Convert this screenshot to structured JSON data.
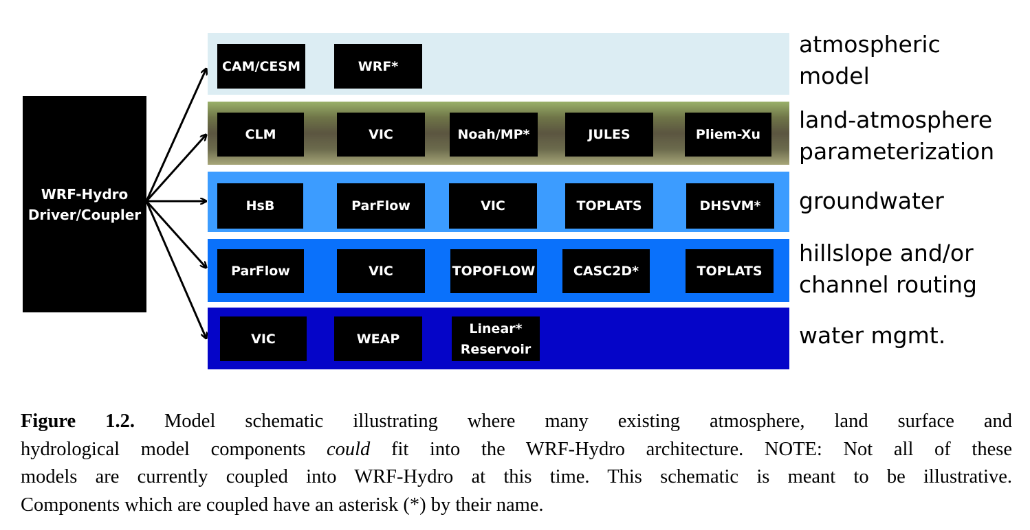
{
  "driver": {
    "line1": "WRF-Hydro",
    "line2": "Driver/Coupler"
  },
  "layers": [
    {
      "label_lines": [
        "atmospheric",
        "model"
      ],
      "color": "#dcedf3",
      "components": [
        "CAM/CESM",
        "WRF*"
      ]
    },
    {
      "label_lines": [
        "land-atmosphere",
        "parameterization"
      ],
      "color": "#6f7548",
      "components": [
        "CLM",
        "VIC",
        "Noah/MP*",
        "JULES",
        "Pliem-Xu"
      ]
    },
    {
      "label_lines": [
        "groundwater"
      ],
      "color": "#3c9cff",
      "components": [
        "HsB",
        "ParFlow",
        "VIC",
        "TOPLATS",
        "DHSVM*"
      ]
    },
    {
      "label_lines": [
        "hillslope and/or",
        "channel routing"
      ],
      "color": "#0a71fb",
      "components": [
        "ParFlow",
        "VIC",
        "TOPOFLOW",
        "CASC2D*",
        "TOPLATS"
      ]
    },
    {
      "label_lines": [
        "water mgmt."
      ],
      "color": "#0505c8",
      "components": [
        "VIC",
        "WEAP",
        [
          "Linear*",
          "Reservoir"
        ]
      ]
    }
  ],
  "caption": {
    "figure_label": "Figure 1.2.",
    "line1_rest": " Model schematic illustrating where many existing atmosphere, land surface and",
    "line2_a": "hydrological model components ",
    "line2_em": "could",
    "line2_b": " fit into the WRF-Hydro architecture.  NOTE: Not all of these",
    "line3": "models are currently coupled into WRF-Hydro at this time. This schematic is meant to be illustrative.",
    "line4": "Components which are coupled have an asterisk (*) by their name."
  }
}
